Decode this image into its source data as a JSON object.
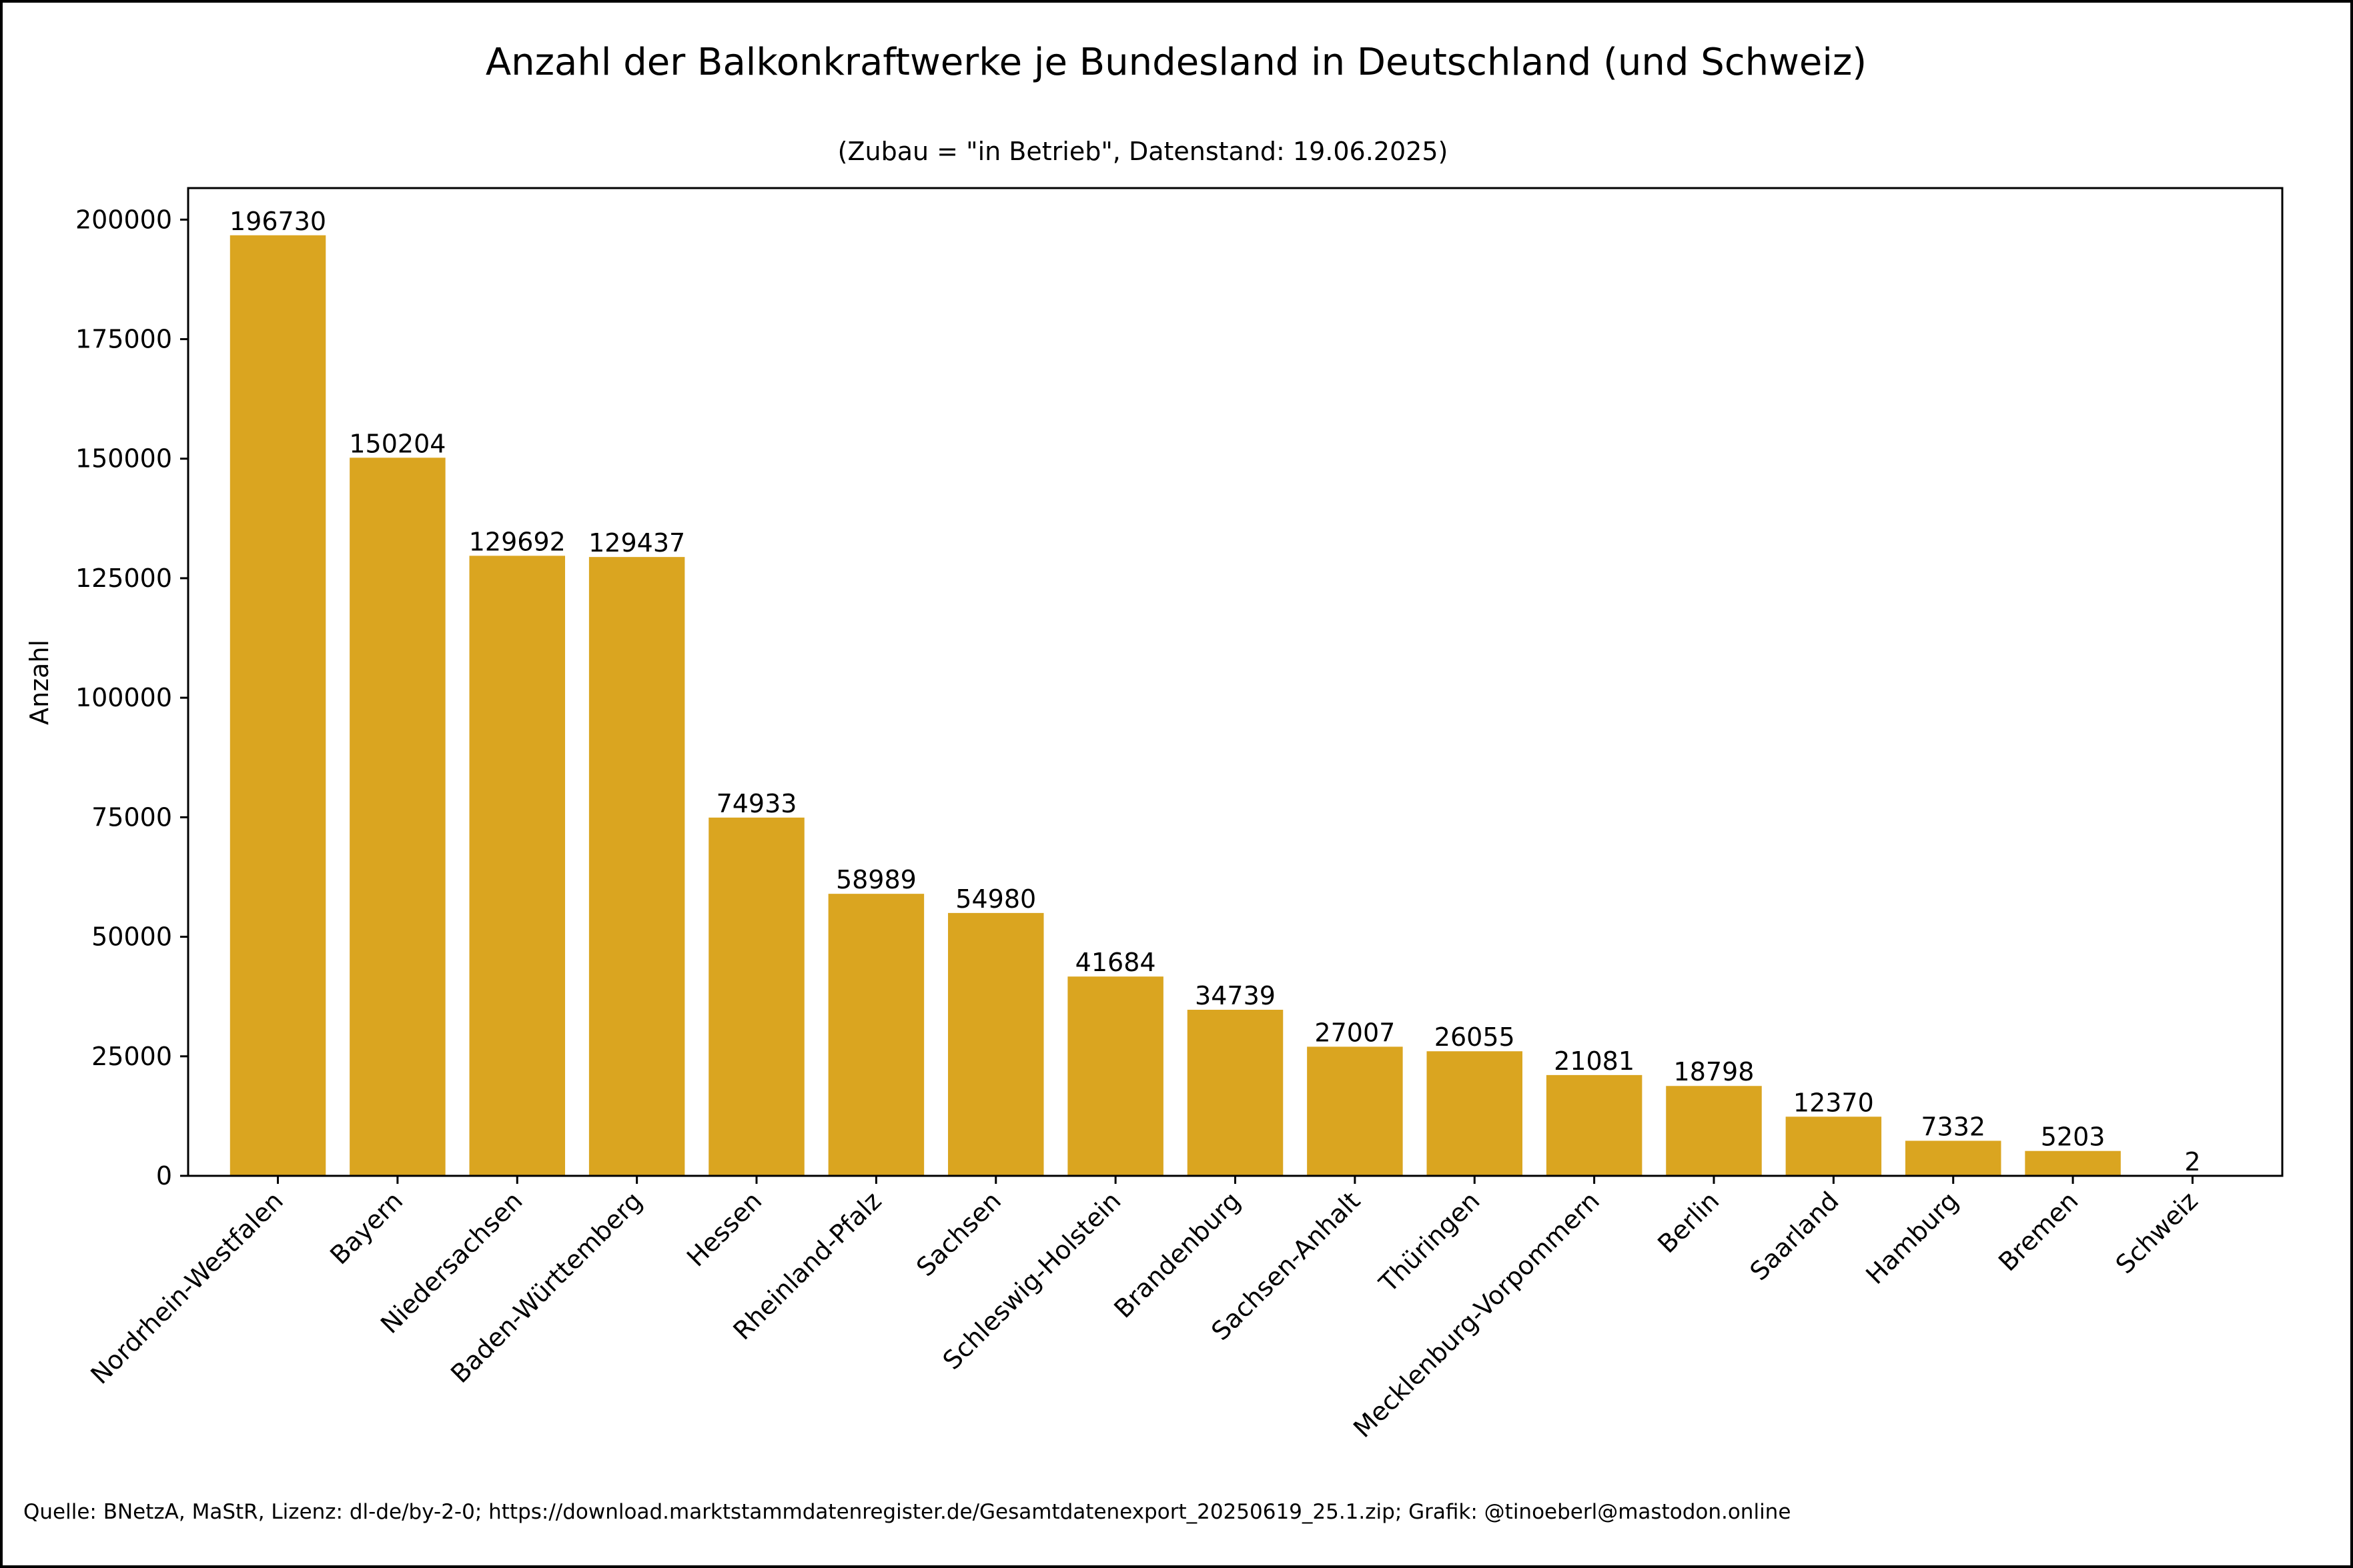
{
  "chart_data": {
    "type": "bar",
    "title": "Anzahl der Balkonkraftwerke je Bundesland in Deutschland (und Schweiz)",
    "subtitle": "(Zubau = \"in Betrieb\", Datenstand: 19.06.2025)",
    "xlabel": "",
    "ylabel": "Anzahl",
    "ylim": [
      0,
      206600
    ],
    "yticks": [
      0,
      25000,
      50000,
      75000,
      100000,
      125000,
      150000,
      175000,
      200000
    ],
    "grid": false,
    "bar_color": "#DAA520",
    "categories": [
      "Nordrhein-Westfalen",
      "Bayern",
      "Niedersachsen",
      "Baden-Württemberg",
      "Hessen",
      "Rheinland-Pfalz",
      "Sachsen",
      "Schleswig-Holstein",
      "Brandenburg",
      "Sachsen-Anhalt",
      "Thüringen",
      "Mecklenburg-Vorpommern",
      "Berlin",
      "Saarland",
      "Hamburg",
      "Bremen",
      "Schweiz"
    ],
    "values": [
      196730,
      150204,
      129692,
      129437,
      74933,
      58989,
      54980,
      41684,
      34739,
      27007,
      26055,
      21081,
      18798,
      12370,
      7332,
      5203,
      2
    ],
    "source": "Quelle: BNetzA, MaStR, Lizenz: dl-de/by-2-0; https://download.marktstammdatenregister.de/Gesamtdatenexport_20250619_25.1.zip; Grafik: @tinoeberl@mastodon.online"
  }
}
